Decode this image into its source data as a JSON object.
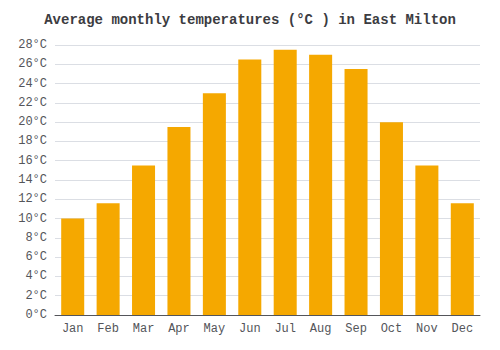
{
  "chart_data": {
    "type": "bar",
    "title": "Average monthly temperatures (°C ) in East Milton",
    "categories": [
      "Jan",
      "Feb",
      "Mar",
      "Apr",
      "May",
      "Jun",
      "Jul",
      "Aug",
      "Sep",
      "Oct",
      "Nov",
      "Dec"
    ],
    "values": [
      10.0,
      11.6,
      15.5,
      19.5,
      23.0,
      26.5,
      27.5,
      27.0,
      25.5,
      20.0,
      15.5,
      11.6
    ],
    "color": "#F5A800",
    "ylim": [
      0,
      28
    ],
    "yticks": [
      {
        "value": 0,
        "label": "0°C"
      },
      {
        "value": 2,
        "label": "2°C"
      },
      {
        "value": 4,
        "label": "4°C"
      },
      {
        "value": 6,
        "label": "6°C"
      },
      {
        "value": 8,
        "label": "8°C"
      },
      {
        "value": 10,
        "label": "10°C"
      },
      {
        "value": 12,
        "label": "12°C"
      },
      {
        "value": 14,
        "label": "14°C"
      },
      {
        "value": 16,
        "label": "16°C"
      },
      {
        "value": 18,
        "label": "18°C"
      },
      {
        "value": 20,
        "label": "20°C"
      },
      {
        "value": 22,
        "label": "22°C"
      },
      {
        "value": 24,
        "label": "24°C"
      },
      {
        "value": 26,
        "label": "26°C"
      },
      {
        "value": 28,
        "label": "28°C"
      }
    ],
    "grid": true
  }
}
